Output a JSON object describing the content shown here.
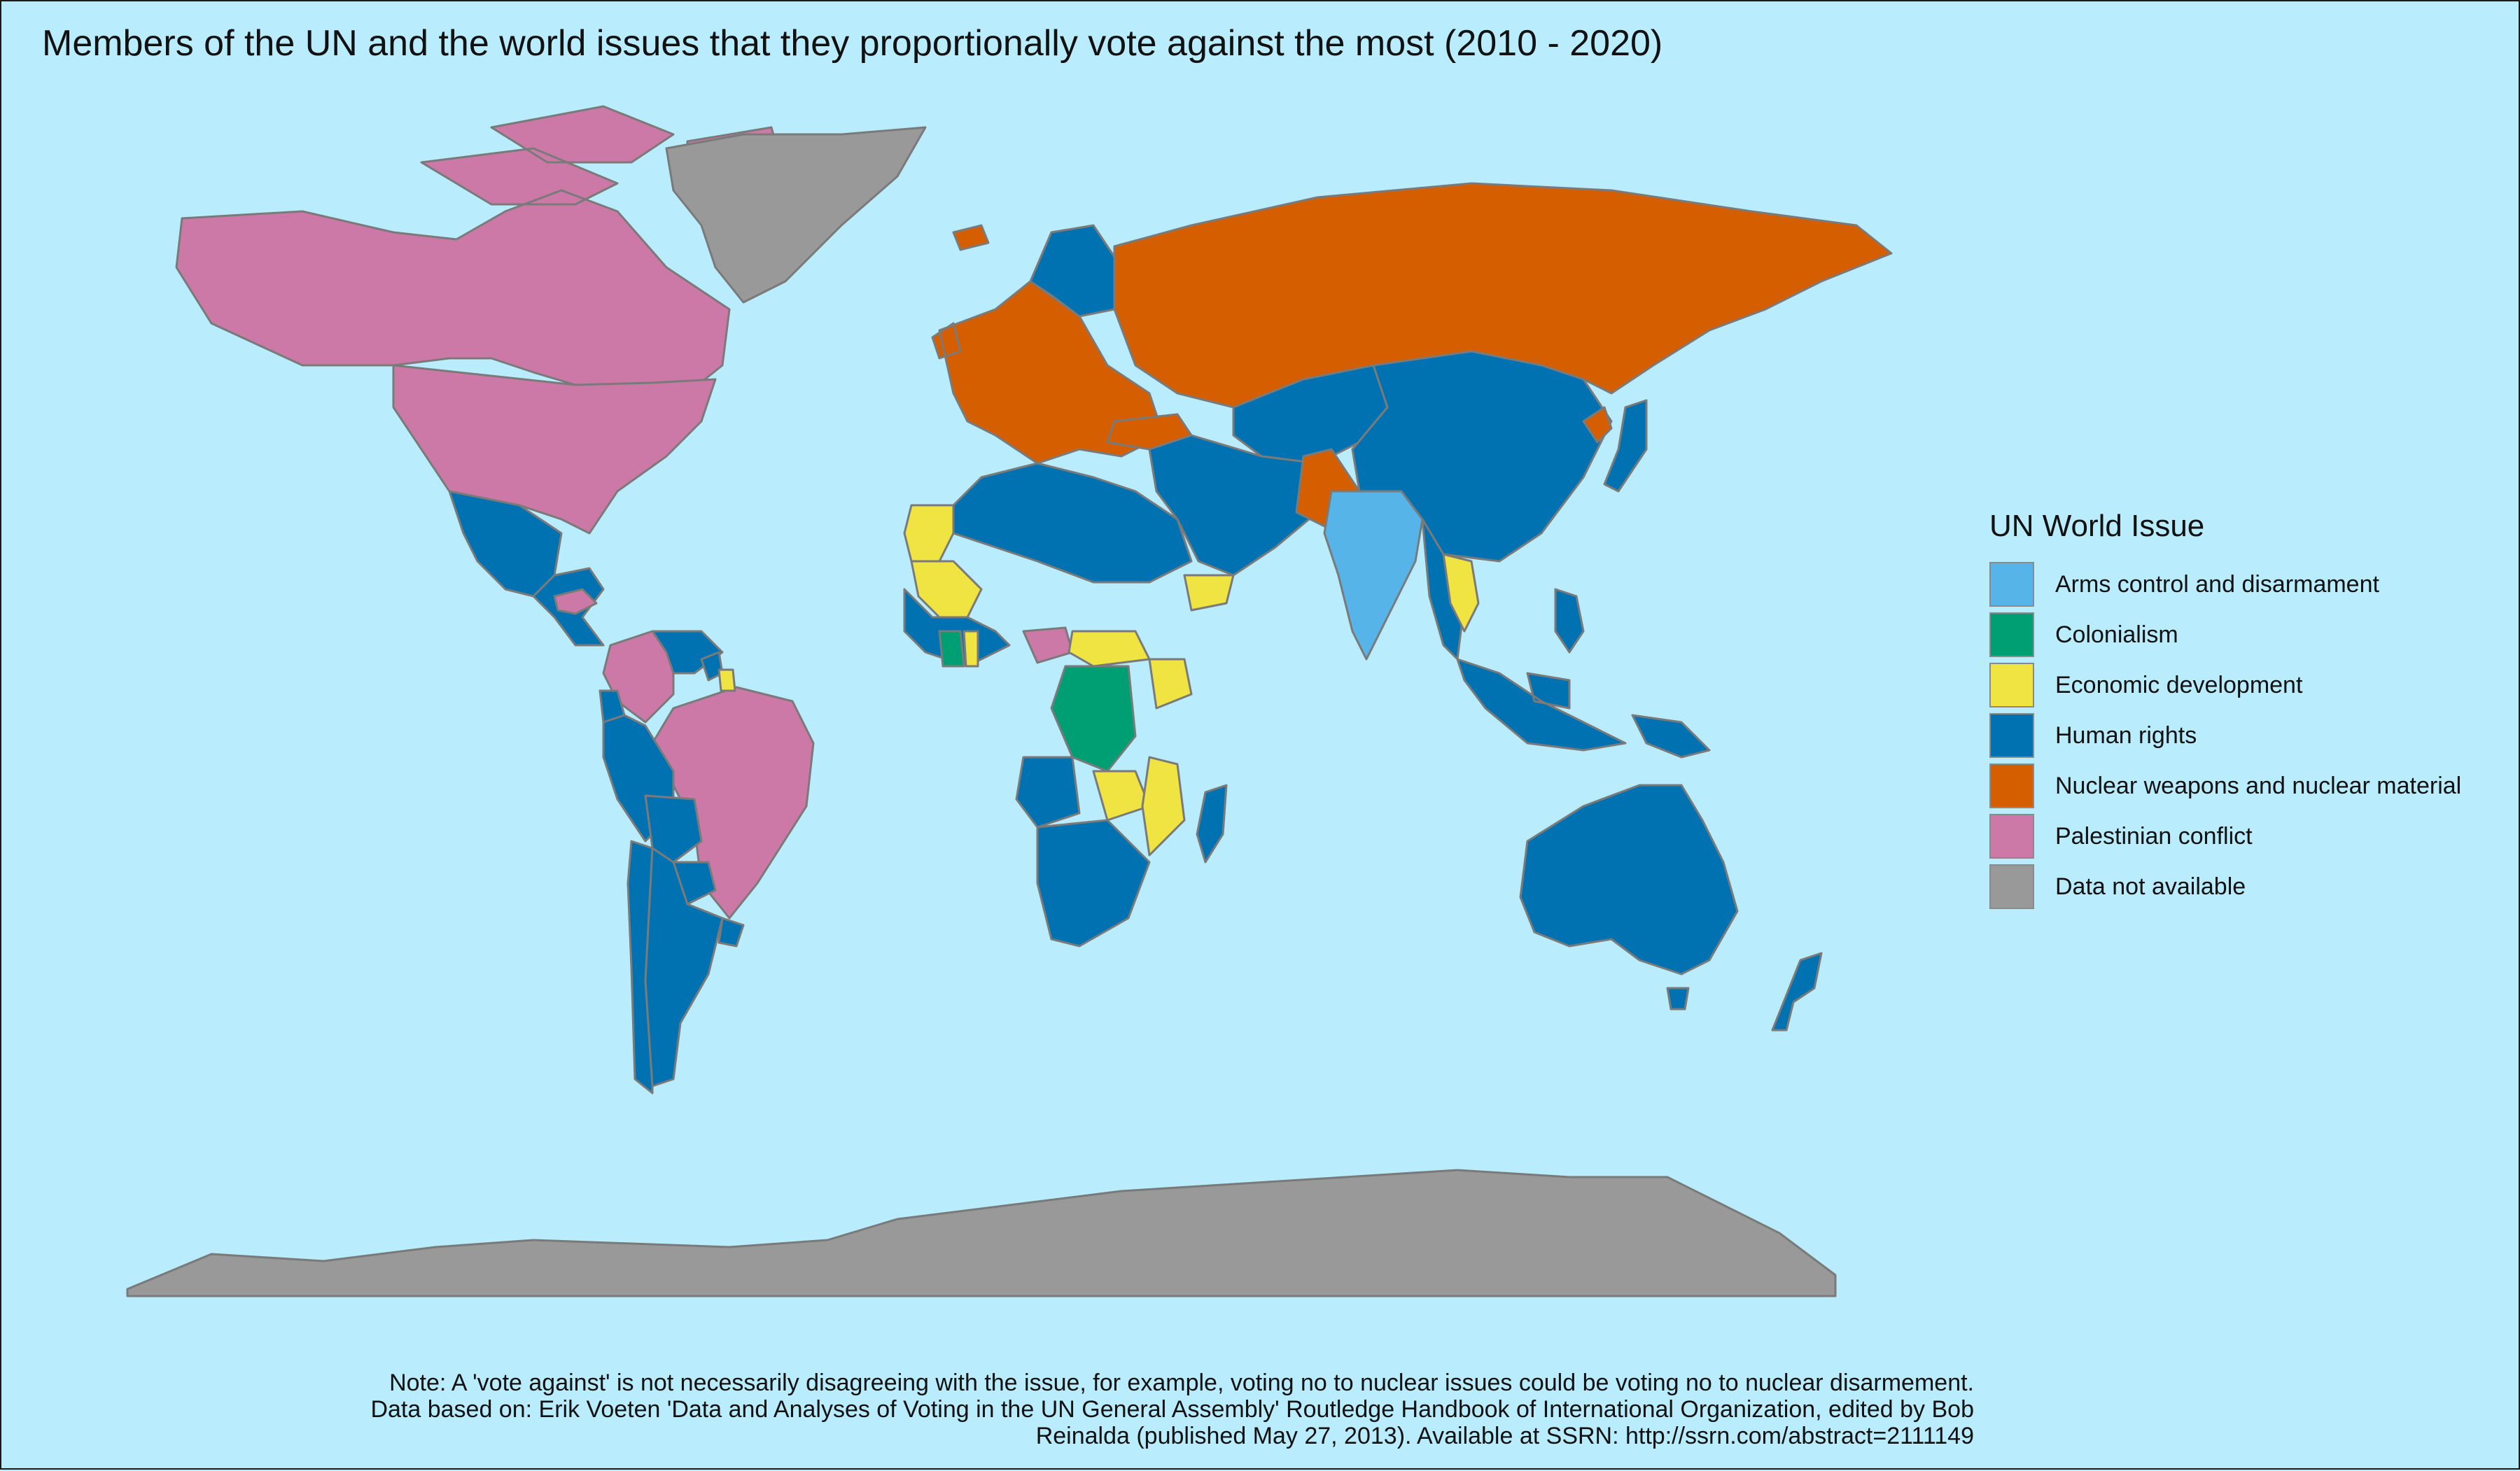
{
  "title": "Members of the UN and the world issues that they proportionally vote against the most (2010 - 2020)",
  "legend": {
    "title": "UN World Issue",
    "items": [
      {
        "label": "Arms control and disarmament",
        "color": "#56b4e9"
      },
      {
        "label": "Colonialism",
        "color": "#009e73"
      },
      {
        "label": "Economic development",
        "color": "#f0e442"
      },
      {
        "label": "Human rights",
        "color": "#0072b2"
      },
      {
        "label": "Nuclear weapons and nuclear material",
        "color": "#d55e00"
      },
      {
        "label": "Palestinian conflict",
        "color": "#cc79a7"
      },
      {
        "label": "Data not available",
        "color": "#999999"
      }
    ]
  },
  "note": {
    "line1": "Note: A 'vote against' is not necessarily disagreeing with the issue, for example, voting no to nuclear issues could be voting no to nuclear disarmement.",
    "line2": "Data based on: Erik Voeten 'Data and Analyses of Voting in the UN General Assembly' Routledge Handbook of International Organization, edited by Bob",
    "line3": "Reinalda (published May 27, 2013). Available at SSRN: http://ssrn.com/abstract=2111149"
  },
  "regions": [
    {
      "name": "Canada",
      "issue": "Palestinian conflict"
    },
    {
      "name": "United States",
      "issue": "Palestinian conflict"
    },
    {
      "name": "Greenland",
      "issue": "Data not available"
    },
    {
      "name": "Mexico",
      "issue": "Human rights"
    },
    {
      "name": "Central America",
      "issue": "Human rights"
    },
    {
      "name": "Honduras",
      "issue": "Palestinian conflict"
    },
    {
      "name": "Brazil",
      "issue": "Palestinian conflict"
    },
    {
      "name": "Colombia",
      "issue": "Palestinian conflict"
    },
    {
      "name": "Venezuela",
      "issue": "Human rights"
    },
    {
      "name": "Guyana",
      "issue": "Human rights"
    },
    {
      "name": "Suriname",
      "issue": "Economic development"
    },
    {
      "name": "Ecuador",
      "issue": "Human rights"
    },
    {
      "name": "Peru",
      "issue": "Human rights"
    },
    {
      "name": "Bolivia",
      "issue": "Human rights"
    },
    {
      "name": "Paraguay",
      "issue": "Human rights"
    },
    {
      "name": "Chile",
      "issue": "Human rights"
    },
    {
      "name": "Argentina",
      "issue": "Human rights"
    },
    {
      "name": "Uruguay",
      "issue": "Human rights"
    },
    {
      "name": "Western Europe",
      "issue": "Nuclear weapons and nuclear material"
    },
    {
      "name": "Scandinavia",
      "issue": "Human rights"
    },
    {
      "name": "Iceland",
      "issue": "Nuclear weapons and nuclear material"
    },
    {
      "name": "Russia",
      "issue": "Nuclear weapons and nuclear material"
    },
    {
      "name": "Turkey",
      "issue": "Nuclear weapons and nuclear material"
    },
    {
      "name": "Central Asia",
      "issue": "Human rights"
    },
    {
      "name": "Middle East",
      "issue": "Human rights"
    },
    {
      "name": "Pakistan",
      "issue": "Nuclear weapons and nuclear material"
    },
    {
      "name": "India",
      "issue": "Arms control and disarmament"
    },
    {
      "name": "China",
      "issue": "Human rights"
    },
    {
      "name": "North Korea",
      "issue": "Nuclear weapons and nuclear material"
    },
    {
      "name": "Japan",
      "issue": "Human rights"
    },
    {
      "name": "Southeast Asia",
      "issue": "Human rights"
    },
    {
      "name": "Thailand and Laos",
      "issue": "Economic development"
    },
    {
      "name": "Indonesia",
      "issue": "Human rights"
    },
    {
      "name": "Philippines",
      "issue": "Human rights"
    },
    {
      "name": "Papua New Guinea",
      "issue": "Human rights"
    },
    {
      "name": "Australia",
      "issue": "Human rights"
    },
    {
      "name": "New Zealand",
      "issue": "Human rights"
    },
    {
      "name": "North Africa",
      "issue": "Human rights"
    },
    {
      "name": "Western Sahara and Mauritania",
      "issue": "Economic development"
    },
    {
      "name": "Mali",
      "issue": "Economic development"
    },
    {
      "name": "West Africa",
      "issue": "Human rights"
    },
    {
      "name": "Cote d'Ivoire",
      "issue": "Colonialism"
    },
    {
      "name": "Ghana",
      "issue": "Economic development"
    },
    {
      "name": "Central African Republic",
      "issue": "Palestinian conflict"
    },
    {
      "name": "South Sudan",
      "issue": "Economic development"
    },
    {
      "name": "Yemen",
      "issue": "Economic development"
    },
    {
      "name": "Kenya",
      "issue": "Economic development"
    },
    {
      "name": "DR Congo",
      "issue": "Colonialism"
    },
    {
      "name": "Angola",
      "issue": "Human rights"
    },
    {
      "name": "Zambia",
      "issue": "Economic development"
    },
    {
      "name": "Mozambique",
      "issue": "Economic development"
    },
    {
      "name": "Southern Africa",
      "issue": "Human rights"
    },
    {
      "name": "Madagascar",
      "issue": "Human rights"
    },
    {
      "name": "Antarctica",
      "issue": "Data not available"
    }
  ]
}
